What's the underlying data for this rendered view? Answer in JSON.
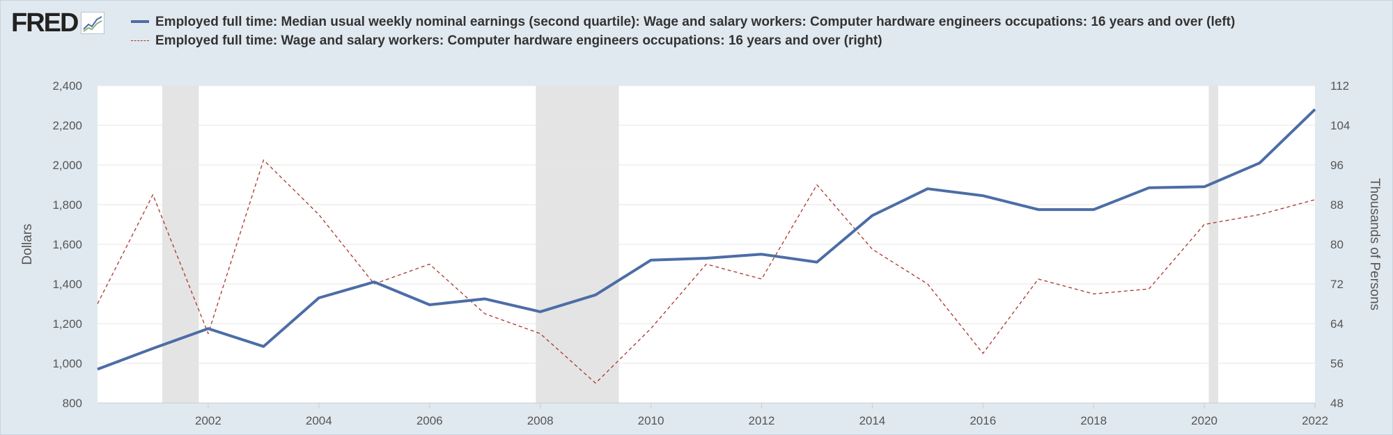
{
  "logo": {
    "text": "FRED",
    "icon": "fred-chart-icon"
  },
  "chart_data": {
    "type": "line",
    "x": [
      2000,
      2001,
      2002,
      2003,
      2004,
      2005,
      2006,
      2007,
      2008,
      2009,
      2010,
      2011,
      2012,
      2013,
      2014,
      2015,
      2016,
      2017,
      2018,
      2019,
      2020,
      2021,
      2022
    ],
    "series": [
      {
        "name": "Employed full time: Median usual weekly nominal earnings (second quartile): Wage and salary workers: Computer hardware engineers occupations: 16 years and over (left)",
        "axis": "left",
        "style": "solid",
        "color": "#4c6da6",
        "values": [
          970,
          1075,
          1175,
          1085,
          1330,
          1410,
          1295,
          1325,
          1260,
          1345,
          1520,
          1530,
          1550,
          1510,
          1745,
          1880,
          1845,
          1775,
          1775,
          1885,
          1890,
          2010,
          2280
        ]
      },
      {
        "name": "Employed full time: Wage and salary workers: Computer hardware engineers occupations: 16 years and over (right)",
        "axis": "right",
        "style": "dashed",
        "color": "#a8352b",
        "values": [
          68,
          90,
          62,
          97,
          86,
          72,
          76,
          66,
          62,
          52,
          63,
          76,
          73,
          92,
          79,
          72,
          58,
          73,
          70,
          71,
          84,
          86,
          89
        ]
      }
    ],
    "xlim": [
      2000,
      2022
    ],
    "ylim_left": [
      800,
      2400
    ],
    "ylim_right": [
      48,
      112
    ],
    "x_ticks": [
      "2002",
      "2004",
      "2006",
      "2008",
      "2010",
      "2012",
      "2014",
      "2016",
      "2018",
      "2020",
      "2022"
    ],
    "y_ticks_left": [
      "800",
      "1,000",
      "1,200",
      "1,400",
      "1,600",
      "1,800",
      "2,000",
      "2,200",
      "2,400"
    ],
    "y_ticks_right": [
      "48",
      "56",
      "64",
      "72",
      "80",
      "88",
      "96",
      "104",
      "112"
    ],
    "ylabel_left": "Dollars",
    "ylabel_right": "Thousands of Persons",
    "recessions": [
      [
        2001.17,
        2001.83
      ],
      [
        2007.92,
        2009.42
      ],
      [
        2020.08,
        2020.25
      ]
    ],
    "grid": true,
    "legend_position": "top"
  }
}
